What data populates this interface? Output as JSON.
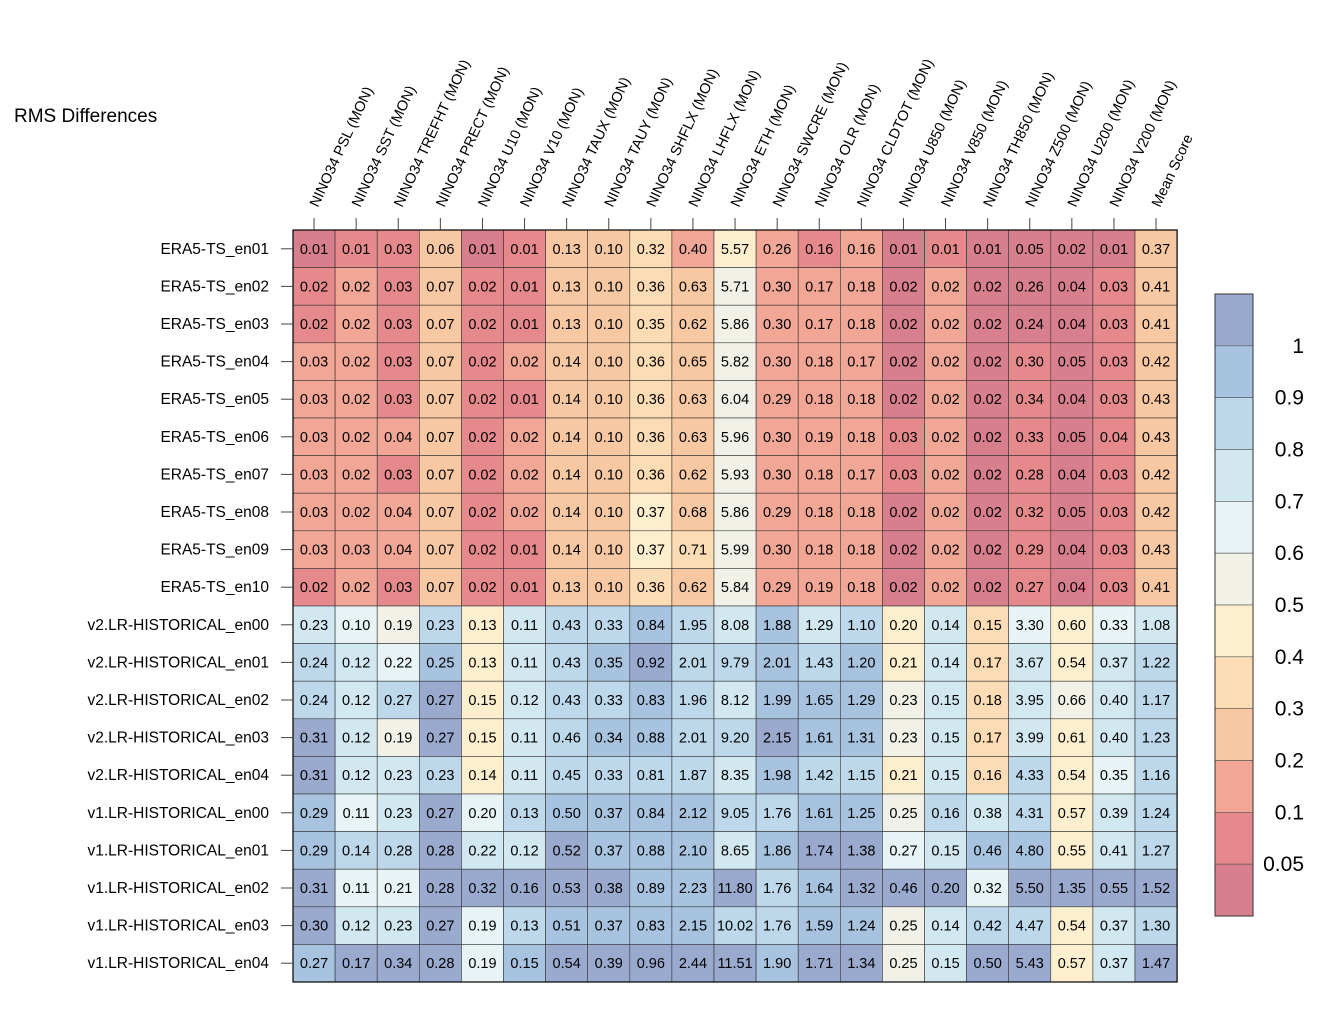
{
  "chart_data": {
    "type": "heatmap",
    "title": "RMS Differences",
    "columns": [
      "NINO34 PSL (MON)",
      "NINO34 SST (MON)",
      "NINO34 TREFHT (MON)",
      "NINO34 PRECT (MON)",
      "NINO34 U10 (MON)",
      "NINO34 V10 (MON)",
      "NINO34 TAUX (MON)",
      "NINO34 TAUY (MON)",
      "NINO34 SHFLX (MON)",
      "NINO34 LHFLX (MON)",
      "NINO34 ETH (MON)",
      "NINO34 SWCRE (MON)",
      "NINO34 OLR (MON)",
      "NINO34 CLDTOT (MON)",
      "NINO34 U850 (MON)",
      "NINO34 V850 (MON)",
      "NINO34 TH850 (MON)",
      "NINO34 Z500 (MON)",
      "NINO34 U200 (MON)",
      "NINO34 V200 (MON)",
      "Mean Score"
    ],
    "rows": [
      "ERA5-TS_en01",
      "ERA5-TS_en02",
      "ERA5-TS_en03",
      "ERA5-TS_en04",
      "ERA5-TS_en05",
      "ERA5-TS_en06",
      "ERA5-TS_en07",
      "ERA5-TS_en08",
      "ERA5-TS_en09",
      "ERA5-TS_en10",
      "v2.LR-HISTORICAL_en00",
      "v2.LR-HISTORICAL_en01",
      "v2.LR-HISTORICAL_en02",
      "v2.LR-HISTORICAL_en03",
      "v2.LR-HISTORICAL_en04",
      "v1.LR-HISTORICAL_en00",
      "v1.LR-HISTORICAL_en01",
      "v1.LR-HISTORICAL_en02",
      "v1.LR-HISTORICAL_en03",
      "v1.LR-HISTORICAL_en04"
    ],
    "values": [
      [
        "0.01",
        "0.01",
        "0.03",
        "0.06",
        "0.01",
        "0.01",
        "0.13",
        "0.10",
        "0.32",
        "0.40",
        "5.57",
        "0.26",
        "0.16",
        "0.16",
        "0.01",
        "0.01",
        "0.01",
        "0.05",
        "0.02",
        "0.01",
        "0.37"
      ],
      [
        "0.02",
        "0.02",
        "0.03",
        "0.07",
        "0.02",
        "0.01",
        "0.13",
        "0.10",
        "0.36",
        "0.63",
        "5.71",
        "0.30",
        "0.17",
        "0.18",
        "0.02",
        "0.02",
        "0.02",
        "0.26",
        "0.04",
        "0.03",
        "0.41"
      ],
      [
        "0.02",
        "0.02",
        "0.03",
        "0.07",
        "0.02",
        "0.01",
        "0.13",
        "0.10",
        "0.35",
        "0.62",
        "5.86",
        "0.30",
        "0.17",
        "0.18",
        "0.02",
        "0.02",
        "0.02",
        "0.24",
        "0.04",
        "0.03",
        "0.41"
      ],
      [
        "0.03",
        "0.02",
        "0.03",
        "0.07",
        "0.02",
        "0.02",
        "0.14",
        "0.10",
        "0.36",
        "0.65",
        "5.82",
        "0.30",
        "0.18",
        "0.17",
        "0.02",
        "0.02",
        "0.02",
        "0.30",
        "0.05",
        "0.03",
        "0.42"
      ],
      [
        "0.03",
        "0.02",
        "0.03",
        "0.07",
        "0.02",
        "0.01",
        "0.14",
        "0.10",
        "0.36",
        "0.63",
        "6.04",
        "0.29",
        "0.18",
        "0.18",
        "0.02",
        "0.02",
        "0.02",
        "0.34",
        "0.04",
        "0.03",
        "0.43"
      ],
      [
        "0.03",
        "0.02",
        "0.04",
        "0.07",
        "0.02",
        "0.02",
        "0.14",
        "0.10",
        "0.36",
        "0.63",
        "5.96",
        "0.30",
        "0.19",
        "0.18",
        "0.03",
        "0.02",
        "0.02",
        "0.33",
        "0.05",
        "0.04",
        "0.43"
      ],
      [
        "0.03",
        "0.02",
        "0.03",
        "0.07",
        "0.02",
        "0.02",
        "0.14",
        "0.10",
        "0.36",
        "0.62",
        "5.93",
        "0.30",
        "0.18",
        "0.17",
        "0.03",
        "0.02",
        "0.02",
        "0.28",
        "0.04",
        "0.03",
        "0.42"
      ],
      [
        "0.03",
        "0.02",
        "0.04",
        "0.07",
        "0.02",
        "0.02",
        "0.14",
        "0.10",
        "0.37",
        "0.68",
        "5.86",
        "0.29",
        "0.18",
        "0.18",
        "0.02",
        "0.02",
        "0.02",
        "0.32",
        "0.05",
        "0.03",
        "0.42"
      ],
      [
        "0.03",
        "0.03",
        "0.04",
        "0.07",
        "0.02",
        "0.01",
        "0.14",
        "0.10",
        "0.37",
        "0.71",
        "5.99",
        "0.30",
        "0.18",
        "0.18",
        "0.02",
        "0.02",
        "0.02",
        "0.29",
        "0.04",
        "0.03",
        "0.43"
      ],
      [
        "0.02",
        "0.02",
        "0.03",
        "0.07",
        "0.02",
        "0.01",
        "0.13",
        "0.10",
        "0.36",
        "0.62",
        "5.84",
        "0.29",
        "0.19",
        "0.18",
        "0.02",
        "0.02",
        "0.02",
        "0.27",
        "0.04",
        "0.03",
        "0.41"
      ],
      [
        "0.23",
        "0.10",
        "0.19",
        "0.23",
        "0.13",
        "0.11",
        "0.43",
        "0.33",
        "0.84",
        "1.95",
        "8.08",
        "1.88",
        "1.29",
        "1.10",
        "0.20",
        "0.14",
        "0.15",
        "3.30",
        "0.60",
        "0.33",
        "1.08"
      ],
      [
        "0.24",
        "0.12",
        "0.22",
        "0.25",
        "0.13",
        "0.11",
        "0.43",
        "0.35",
        "0.92",
        "2.01",
        "9.79",
        "2.01",
        "1.43",
        "1.20",
        "0.21",
        "0.14",
        "0.17",
        "3.67",
        "0.54",
        "0.37",
        "1.22"
      ],
      [
        "0.24",
        "0.12",
        "0.27",
        "0.27",
        "0.15",
        "0.12",
        "0.43",
        "0.33",
        "0.83",
        "1.96",
        "8.12",
        "1.99",
        "1.65",
        "1.29",
        "0.23",
        "0.15",
        "0.18",
        "3.95",
        "0.66",
        "0.40",
        "1.17"
      ],
      [
        "0.31",
        "0.12",
        "0.19",
        "0.27",
        "0.15",
        "0.11",
        "0.46",
        "0.34",
        "0.88",
        "2.01",
        "9.20",
        "2.15",
        "1.61",
        "1.31",
        "0.23",
        "0.15",
        "0.17",
        "3.99",
        "0.61",
        "0.40",
        "1.23"
      ],
      [
        "0.31",
        "0.12",
        "0.23",
        "0.23",
        "0.14",
        "0.11",
        "0.45",
        "0.33",
        "0.81",
        "1.87",
        "8.35",
        "1.98",
        "1.42",
        "1.15",
        "0.21",
        "0.15",
        "0.16",
        "4.33",
        "0.54",
        "0.35",
        "1.16"
      ],
      [
        "0.29",
        "0.11",
        "0.23",
        "0.27",
        "0.20",
        "0.13",
        "0.50",
        "0.37",
        "0.84",
        "2.12",
        "9.05",
        "1.76",
        "1.61",
        "1.25",
        "0.25",
        "0.16",
        "0.38",
        "4.31",
        "0.57",
        "0.39",
        "1.24"
      ],
      [
        "0.29",
        "0.14",
        "0.28",
        "0.28",
        "0.22",
        "0.12",
        "0.52",
        "0.37",
        "0.88",
        "2.10",
        "8.65",
        "1.86",
        "1.74",
        "1.38",
        "0.27",
        "0.15",
        "0.46",
        "4.80",
        "0.55",
        "0.41",
        "1.27"
      ],
      [
        "0.31",
        "0.11",
        "0.21",
        "0.28",
        "0.32",
        "0.16",
        "0.53",
        "0.38",
        "0.89",
        "2.23",
        "11.80",
        "1.76",
        "1.64",
        "1.32",
        "0.46",
        "0.20",
        "0.32",
        "5.50",
        "1.35",
        "0.55",
        "1.52"
      ],
      [
        "0.30",
        "0.12",
        "0.23",
        "0.27",
        "0.19",
        "0.13",
        "0.51",
        "0.37",
        "0.83",
        "2.15",
        "10.02",
        "1.76",
        "1.59",
        "1.24",
        "0.25",
        "0.14",
        "0.42",
        "4.47",
        "0.54",
        "0.37",
        "1.30"
      ],
      [
        "0.27",
        "0.17",
        "0.34",
        "0.28",
        "0.19",
        "0.15",
        "0.54",
        "0.39",
        "0.96",
        "2.44",
        "11.51",
        "1.90",
        "1.71",
        "1.34",
        "0.25",
        "0.15",
        "0.50",
        "5.43",
        "0.57",
        "0.37",
        "1.47"
      ]
    ],
    "colorbar": {
      "labels": [
        "1",
        "0.9",
        "0.8",
        "0.7",
        "0.6",
        "0.5",
        "0.4",
        "0.3",
        "0.2",
        "0.1",
        "0.05"
      ],
      "colors_top_to_bottom": [
        "#9aaacf",
        "#a8c3df",
        "#bcd8ea",
        "#d2e8f1",
        "#e8f3f5",
        "#f1f1e7",
        "#fdefcd",
        "#fcdcb4",
        "#f8c8a3",
        "#f1a696",
        "#e6898d",
        "#d87f8e"
      ]
    }
  }
}
